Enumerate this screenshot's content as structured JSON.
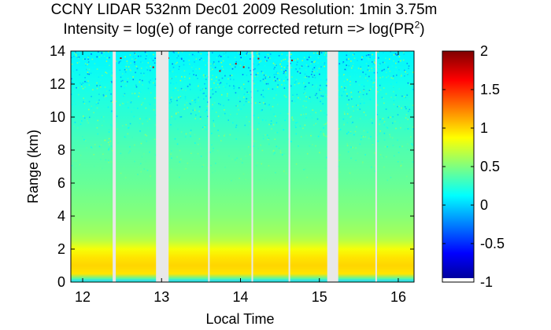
{
  "chart_data": {
    "type": "heatmap",
    "title": "CCNY LIDAR 532nm Dec01 2009 Resolution: 1min 3.75m",
    "subtitle_prefix": "Intensity = log(e) of range corrected return => log(PR",
    "subtitle_superscript": "2",
    "subtitle_suffix": ")",
    "xlabel": "Local Time",
    "ylabel": "Range (km)",
    "xlim": [
      11.85,
      16.2
    ],
    "ylim": [
      0,
      14
    ],
    "xticks": [
      "12",
      "13",
      "14",
      "15",
      "16"
    ],
    "xtick_values": [
      12,
      13,
      14,
      15,
      16
    ],
    "yticks": [
      "0",
      "2",
      "4",
      "6",
      "8",
      "10",
      "12",
      "14"
    ],
    "ytick_values": [
      0,
      2,
      4,
      6,
      8,
      10,
      12,
      14
    ],
    "colorbar": {
      "range": [
        -1,
        2
      ],
      "ticks": [
        "-1",
        "-0.5",
        "0",
        "0.5",
        "1",
        "1.5",
        "2"
      ],
      "tick_values": [
        -1,
        -0.5,
        0,
        0.5,
        1,
        1.5,
        2
      ]
    },
    "data_gaps_local_time": [
      [
        12.38,
        12.42
      ],
      [
        12.93,
        13.09
      ],
      [
        13.59,
        13.61
      ],
      [
        14.14,
        14.16
      ],
      [
        14.61,
        14.63
      ],
      [
        15.1,
        15.24
      ],
      [
        15.71,
        15.73
      ]
    ],
    "intensity_profile": {
      "range_km": [
        0.1,
        0.5,
        1.0,
        1.5,
        2.0,
        2.5,
        3,
        4,
        6,
        8,
        10,
        12,
        14
      ],
      "log_pr2": [
        0.2,
        0.95,
        1.0,
        0.95,
        0.85,
        0.68,
        0.6,
        0.52,
        0.43,
        0.36,
        0.26,
        0.18,
        0.1
      ]
    }
  }
}
